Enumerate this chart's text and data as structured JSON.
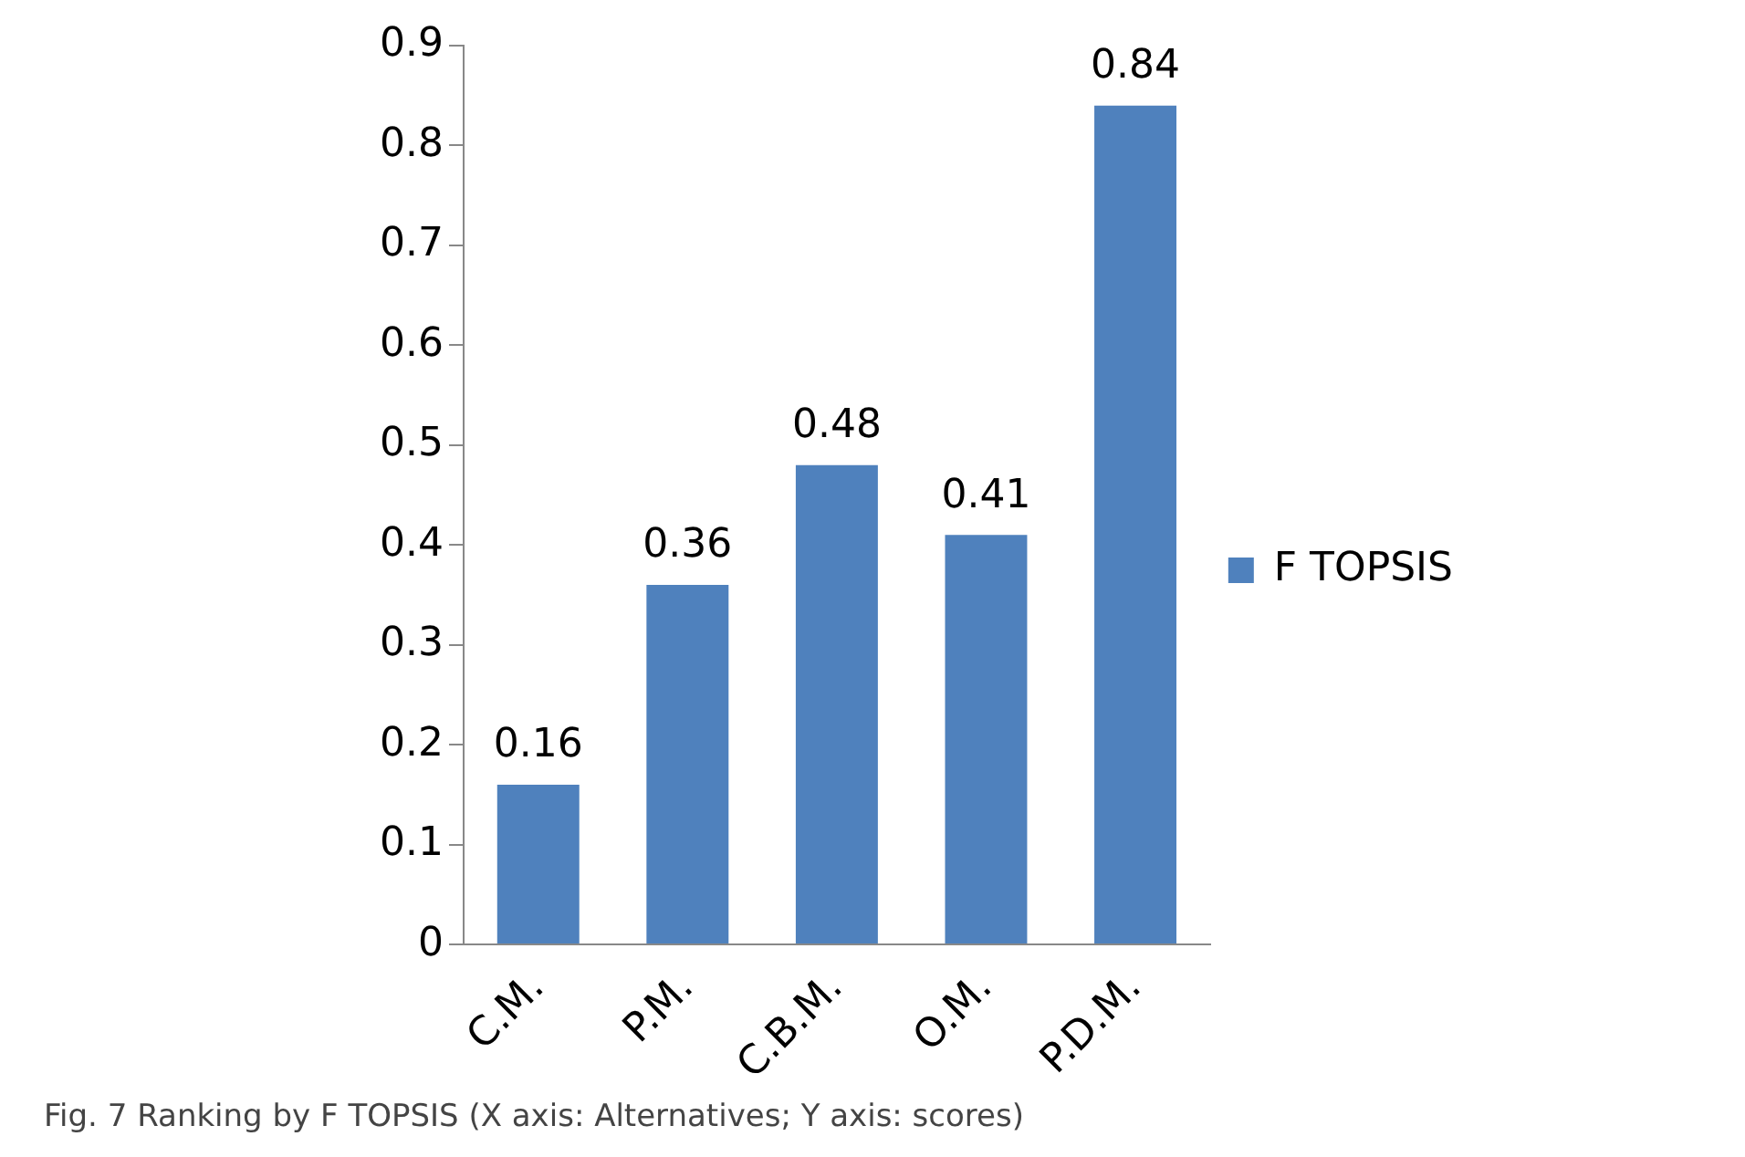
{
  "chart_data": {
    "type": "bar",
    "categories": [
      "C.M.",
      "P.M.",
      "C.B.M.",
      "O.M.",
      "P.D.M."
    ],
    "series": [
      {
        "name": "F TOPSIS",
        "color": "#4f81bd",
        "values": [
          0.16,
          0.36,
          0.48,
          0.41,
          0.84
        ]
      }
    ],
    "ylim": [
      0,
      0.9
    ],
    "yticks": [
      0,
      0.1,
      0.2,
      0.3,
      0.4,
      0.5,
      0.6,
      0.7,
      0.8,
      0.9
    ],
    "grid": false,
    "legend": "right",
    "data_labels": true,
    "annotations": [
      "Fig. 7 Ranking by F TOPSIS (X axis: Alternatives; Y axis: scores)"
    ]
  }
}
